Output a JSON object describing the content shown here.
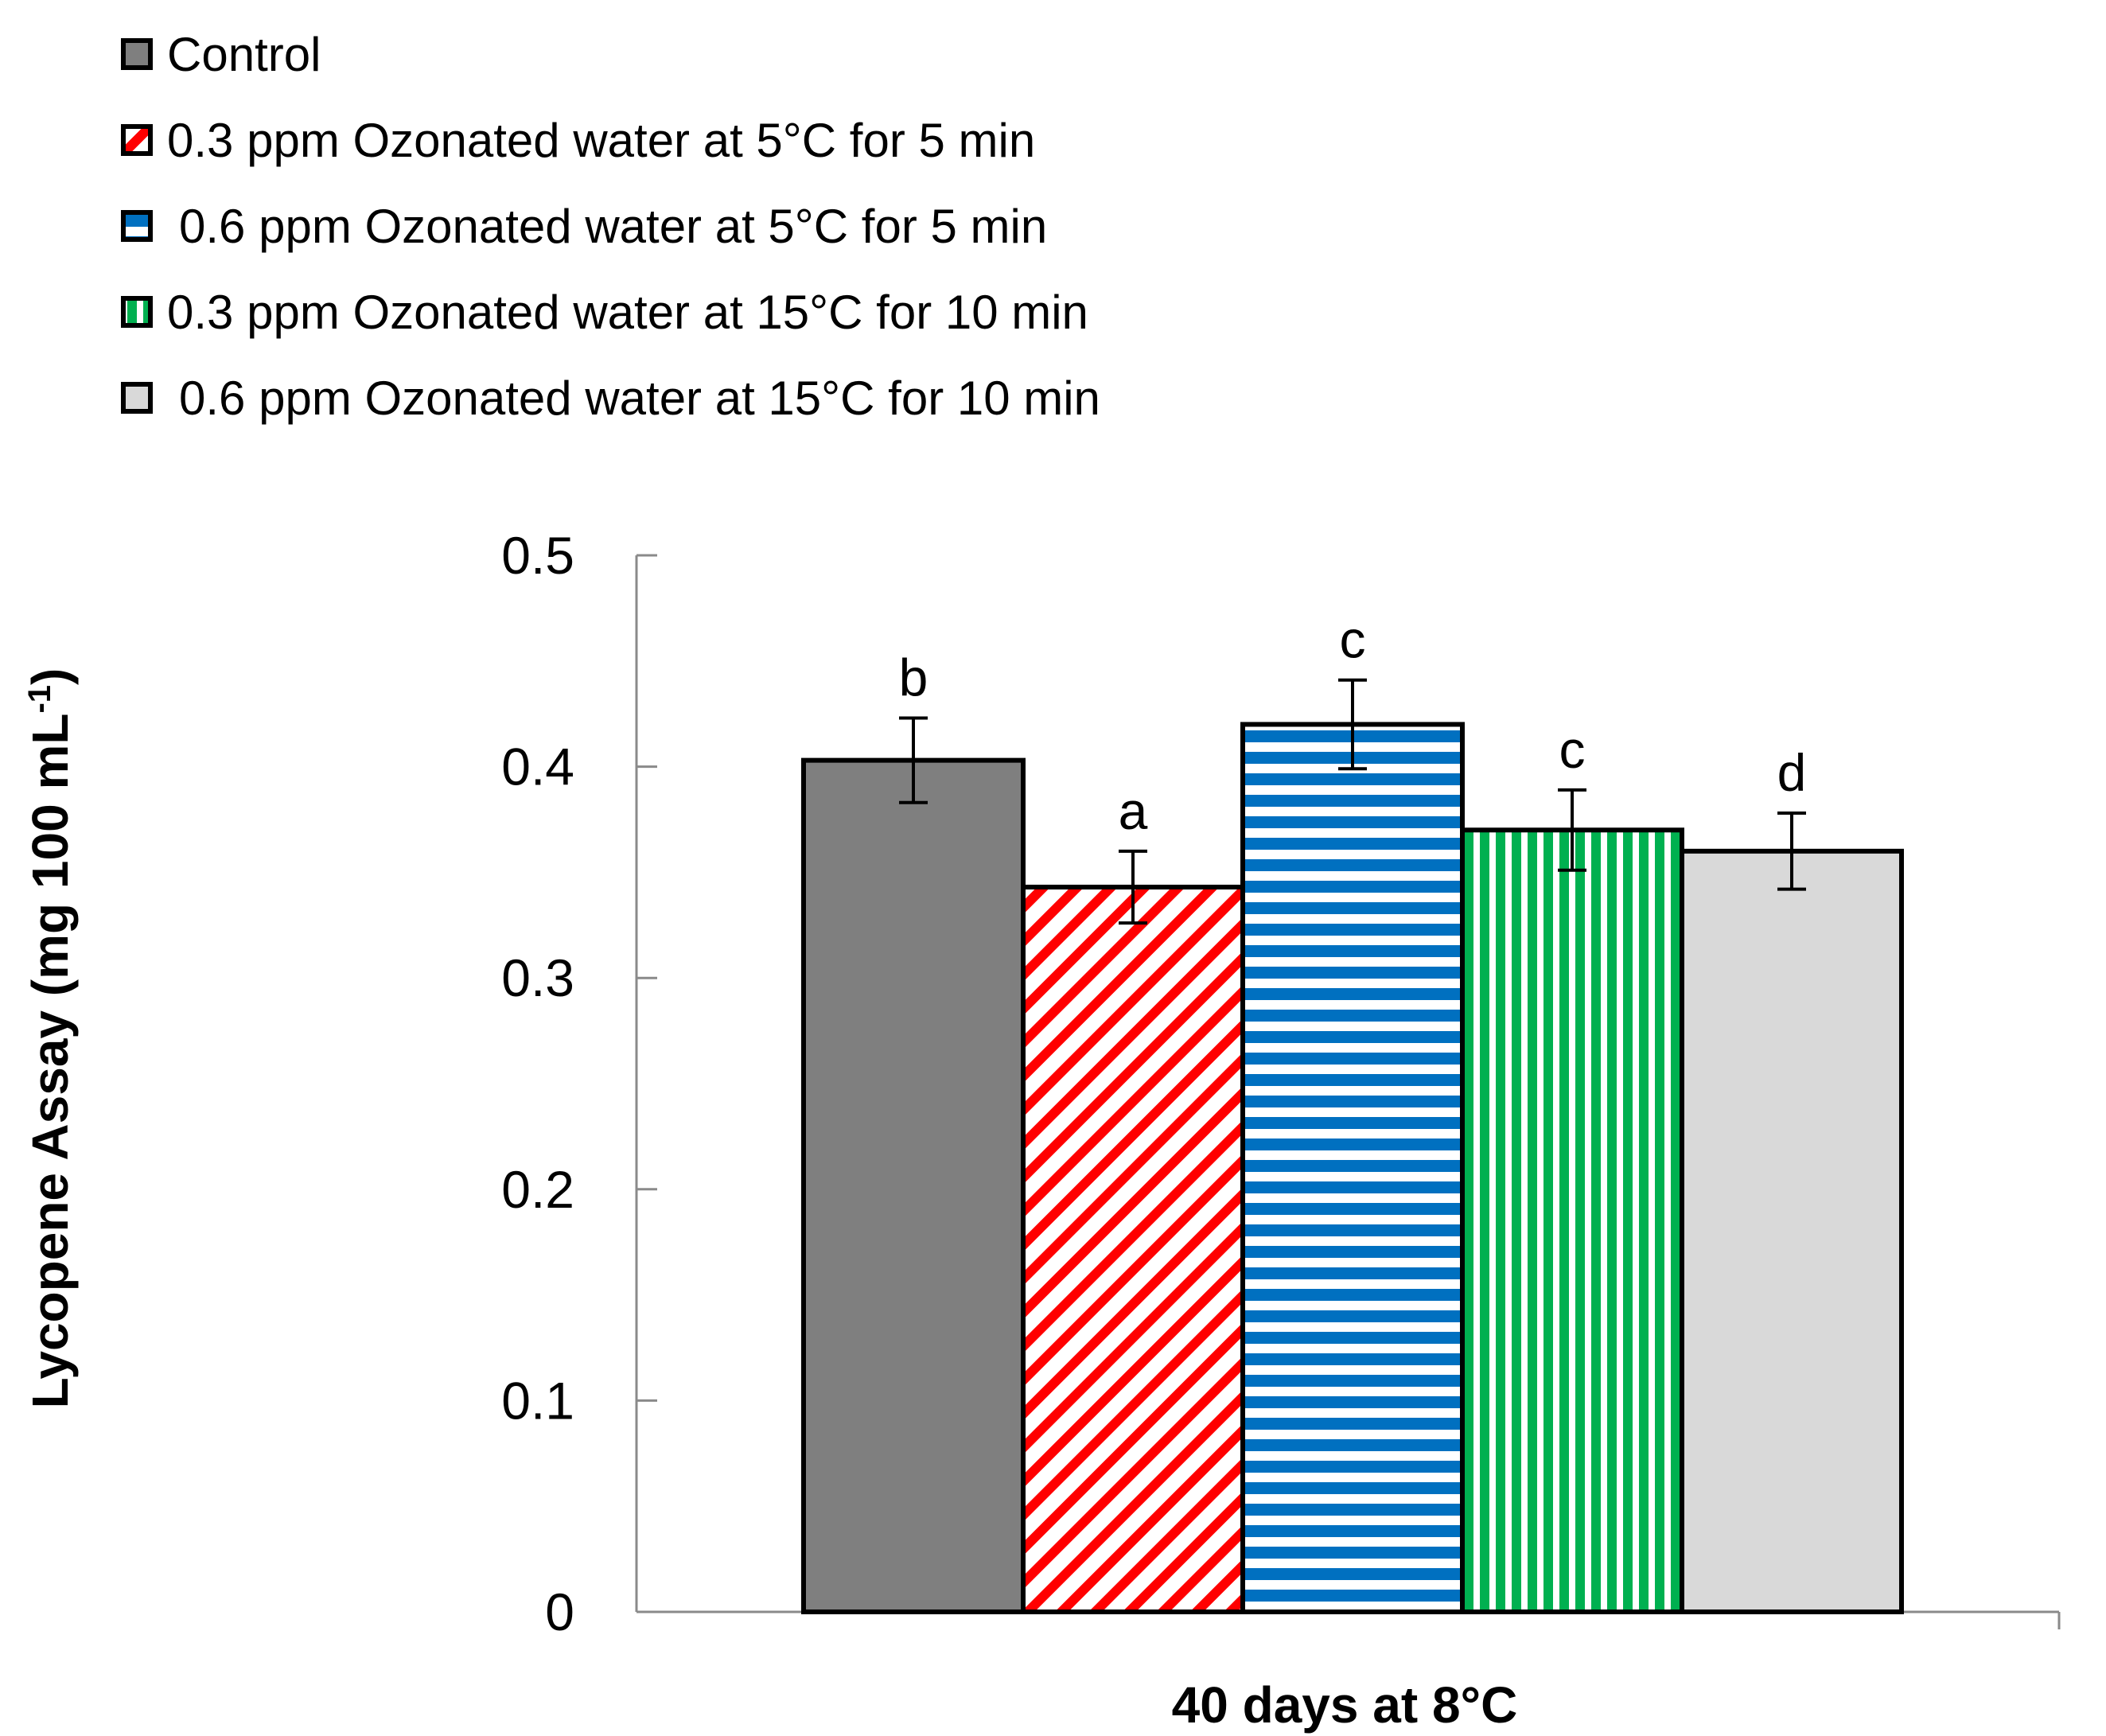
{
  "chart_data": {
    "type": "bar",
    "title": "",
    "xlabel": "40 days at 8°C",
    "ylabel": "Lycopene Assay (mg 100 mL",
    "ylabel_superscript": "-1",
    "ylabel_close": ")",
    "ylim": [
      0,
      0.5
    ],
    "yticks": [
      0,
      0.1,
      0.2,
      0.3,
      0.4,
      0.5
    ],
    "ytick_labels": [
      "0",
      "0.1",
      "0.2",
      "0.3",
      "0.4",
      "0.5"
    ],
    "categories": [
      "40 days at 8°C"
    ],
    "legend_position": "top-left",
    "series": [
      {
        "name": "Control",
        "values": [
          0.403
        ],
        "error": [
          0.02
        ],
        "significance": "b",
        "color": "#7f7f7f",
        "pattern": "solid"
      },
      {
        "name": "0.3 ppm Ozonated water at 5°C for 5 min",
        "values": [
          0.343
        ],
        "error": [
          0.017
        ],
        "significance": "a",
        "color": "#ff0000",
        "pattern": "diagonal-stripes"
      },
      {
        "name": "0.6 ppm Ozonated water at 5°C for 5 min",
        "values": [
          0.42
        ],
        "error": [
          0.021
        ],
        "significance": "c",
        "color": "#0070c0",
        "pattern": "horizontal-stripes"
      },
      {
        "name": "0.3 ppm Ozonated water at 15°C for 10 min",
        "values": [
          0.37
        ],
        "error": [
          0.019
        ],
        "significance": "c",
        "color": "#00b050",
        "pattern": "vertical-stripes"
      },
      {
        "name": "0.6 ppm Ozonated water at 15°C for 10 min",
        "values": [
          0.36
        ],
        "error": [
          0.018
        ],
        "significance": "d",
        "color": "#d9d9d9",
        "pattern": "solid"
      }
    ]
  }
}
